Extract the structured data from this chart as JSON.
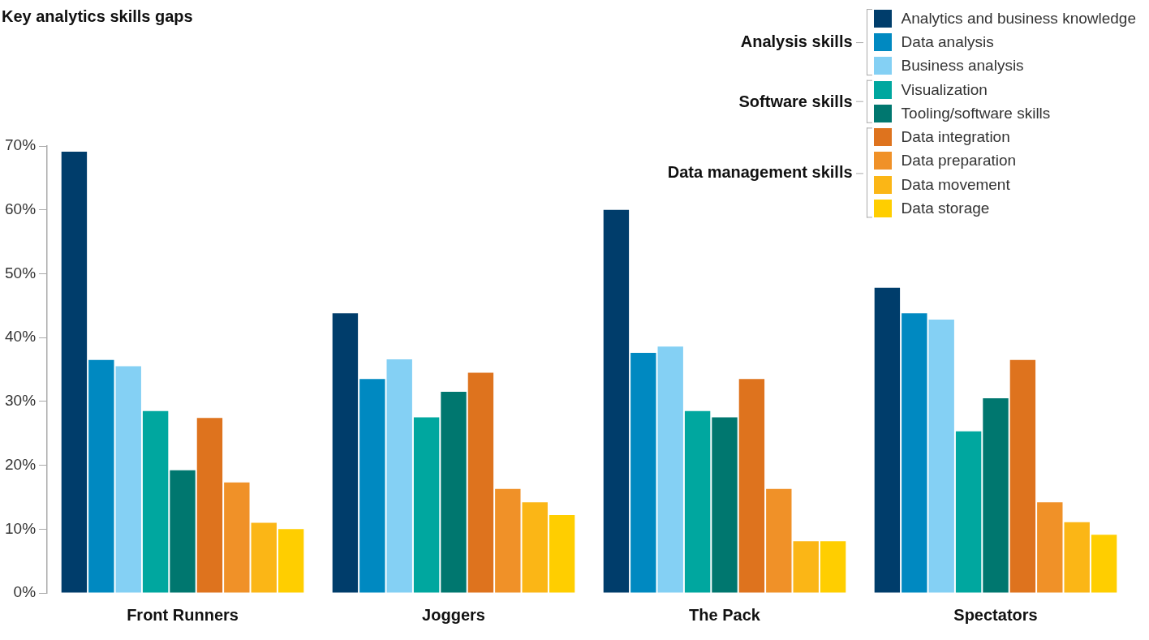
{
  "chart_data": {
    "type": "bar",
    "title": "Key analytics skills gaps",
    "categories": [
      "Front Runners",
      "Joggers",
      "The Pack",
      "Spectators"
    ],
    "series": [
      {
        "name": "Analytics and business knowledge",
        "color": "#003d6b",
        "values": [
          69.1,
          43.8,
          60.0,
          47.8
        ]
      },
      {
        "name": "Data analysis",
        "color": "#0089c1",
        "values": [
          36.5,
          33.5,
          37.6,
          43.8
        ]
      },
      {
        "name": "Business analysis",
        "color": "#84d0f4",
        "values": [
          35.5,
          36.6,
          38.6,
          42.8
        ]
      },
      {
        "name": "Visualization",
        "color": "#00a79f",
        "values": [
          28.5,
          27.5,
          28.5,
          25.3
        ]
      },
      {
        "name": "Tooling/software skills",
        "color": "#00776f",
        "values": [
          19.2,
          31.5,
          27.5,
          30.5
        ]
      },
      {
        "name": "Data integration",
        "color": "#de731e",
        "values": [
          27.4,
          34.5,
          33.5,
          36.5
        ]
      },
      {
        "name": "Data preparation",
        "color": "#f09128",
        "values": [
          17.3,
          16.3,
          16.3,
          14.2
        ]
      },
      {
        "name": "Data movement",
        "color": "#fbb616",
        "values": [
          11.0,
          14.2,
          8.1,
          11.1
        ]
      },
      {
        "name": "Data storage",
        "color": "#ffce00",
        "values": [
          10.0,
          12.2,
          8.1,
          9.1
        ]
      }
    ],
    "annotations": [
      "Analysis skills",
      "Software skills",
      "Data management skills"
    ],
    "ylim": [
      0,
      70
    ],
    "yticks": [
      {
        "value": 0,
        "label": "0%"
      },
      {
        "value": 10,
        "label": "10%"
      },
      {
        "value": 20,
        "label": "20%"
      },
      {
        "value": 30,
        "label": "30%"
      },
      {
        "value": 40,
        "label": "40%"
      },
      {
        "value": 50,
        "label": "50%"
      },
      {
        "value": 60,
        "label": "60%"
      },
      {
        "value": 70,
        "label": "70%"
      }
    ],
    "grid": false,
    "legend": "top right"
  }
}
